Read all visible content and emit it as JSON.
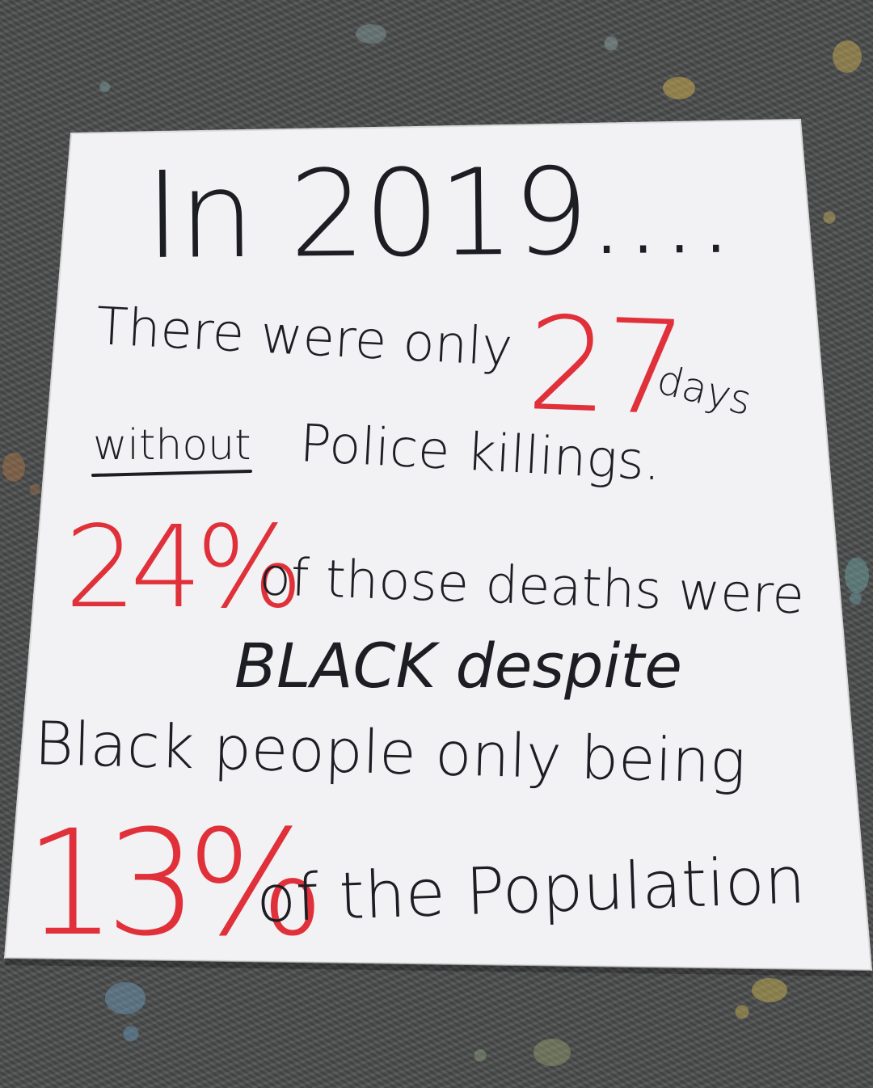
{
  "poster": {
    "line1": "In 2019....",
    "line2_a": "There were only",
    "line2_num": "27",
    "line2_b": "days",
    "line3_a": "without",
    "line3_b": "Police killings.",
    "line4_num": "24%",
    "line4_b": "of those deaths were",
    "line5": "BLACK despite",
    "line6": "Black people only being",
    "line7_num": "13%",
    "line7_b": "of the Population"
  },
  "colors": {
    "ink": "#1d1d24",
    "red_ink": "#e0303a",
    "paper": "#f2f1f3",
    "carpet": "#4a4b4a"
  }
}
